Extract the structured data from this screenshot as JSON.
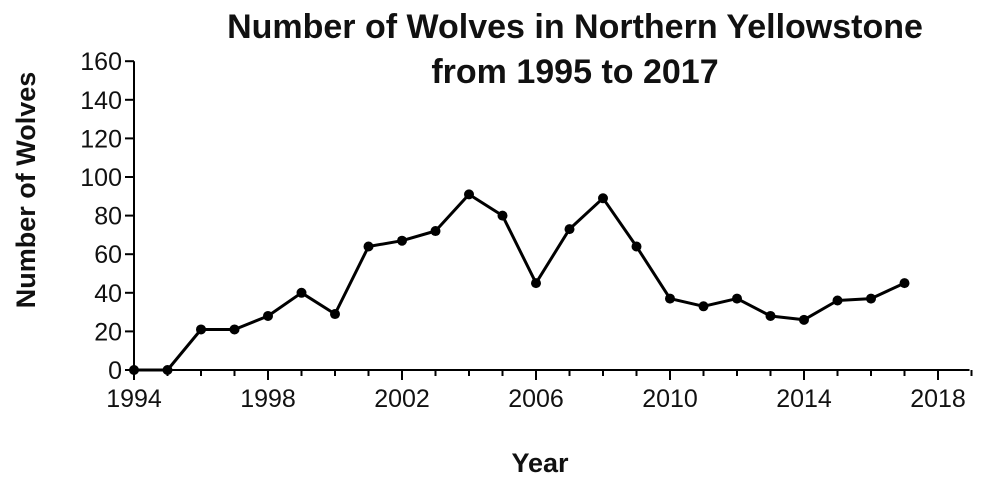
{
  "chart_data": {
    "type": "line",
    "title_lines": [
      "Number of Wolves in Northern Yellowstone",
      "from 1995 to 2017"
    ],
    "xlabel": "Year",
    "ylabel": "Number of Wolves",
    "xlim": [
      1994,
      2019
    ],
    "ylim": [
      0,
      160
    ],
    "xticks": [
      1994,
      1998,
      2002,
      2006,
      2010,
      2014,
      2018
    ],
    "yticks": [
      0,
      20,
      40,
      60,
      80,
      100,
      120,
      140,
      160
    ],
    "grid": false,
    "line_color": "#000000",
    "series": [
      {
        "x": [
          1994,
          1995,
          1996,
          1997,
          1998,
          1999,
          2000,
          2001,
          2002,
          2003,
          2004,
          2005,
          2006,
          2007,
          2008,
          2009,
          2010,
          2011,
          2012,
          2013,
          2014,
          2015,
          2016,
          2017
        ],
        "values": [
          0,
          0,
          21,
          21,
          28,
          40,
          29,
          64,
          67,
          72,
          91,
          80,
          45,
          73,
          89,
          64,
          37,
          33,
          37,
          28,
          26,
          36,
          37,
          45
        ]
      }
    ]
  }
}
